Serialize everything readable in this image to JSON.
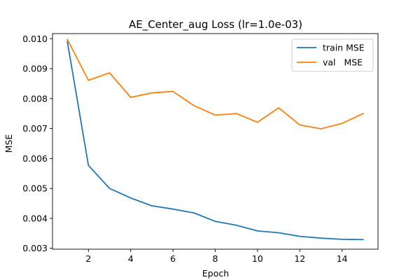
{
  "chart_data": {
    "type": "line",
    "title": "AE_Center_aug Loss (lr=1.0e-03)",
    "xlabel": "Epoch",
    "ylabel": "MSE",
    "xlim": [
      0.3,
      15.7
    ],
    "ylim": [
      0.00297,
      0.01017
    ],
    "x_ticks": [
      2,
      4,
      6,
      8,
      10,
      12,
      14
    ],
    "x_tick_labels": [
      "2",
      "4",
      "6",
      "8",
      "10",
      "12",
      "14"
    ],
    "y_ticks": [
      0.003,
      0.004,
      0.005,
      0.006,
      0.007,
      0.008,
      0.009,
      0.01
    ],
    "y_tick_labels": [
      "0.003",
      "0.004",
      "0.005",
      "0.006",
      "0.007",
      "0.008",
      "0.009",
      "0.010"
    ],
    "grid": false,
    "legend_position": "top-right",
    "x": [
      1,
      2,
      3,
      4,
      5,
      6,
      7,
      8,
      9,
      10,
      11,
      12,
      13,
      14,
      15
    ],
    "series": [
      {
        "name": "train MSE",
        "color": "#1f77b4",
        "values": [
          0.00991,
          0.00577,
          0.005,
          0.00468,
          0.00442,
          0.00431,
          0.00418,
          0.0039,
          0.00377,
          0.00358,
          0.00352,
          0.0034,
          0.00334,
          0.0033,
          0.00329
        ]
      },
      {
        "name": "val   MSE",
        "color": "#ff7f0e",
        "values": [
          0.00998,
          0.00861,
          0.00886,
          0.00804,
          0.00819,
          0.00824,
          0.00776,
          0.00745,
          0.0075,
          0.00721,
          0.00769,
          0.00712,
          0.00699,
          0.00717,
          0.0075
        ]
      }
    ]
  }
}
